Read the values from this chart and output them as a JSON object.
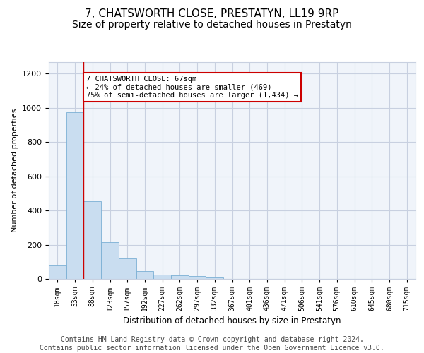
{
  "title": "7, CHATSWORTH CLOSE, PRESTATYN, LL19 9RP",
  "subtitle": "Size of property relative to detached houses in Prestatyn",
  "xlabel": "Distribution of detached houses by size in Prestatyn",
  "ylabel": "Number of detached properties",
  "bar_labels": [
    "18sqm",
    "53sqm",
    "88sqm",
    "123sqm",
    "157sqm",
    "192sqm",
    "227sqm",
    "262sqm",
    "297sqm",
    "332sqm",
    "367sqm",
    "401sqm",
    "436sqm",
    "471sqm",
    "506sqm",
    "541sqm",
    "576sqm",
    "610sqm",
    "645sqm",
    "680sqm",
    "715sqm"
  ],
  "bar_values": [
    80,
    975,
    455,
    215,
    120,
    47,
    25,
    20,
    15,
    10,
    0,
    0,
    0,
    0,
    0,
    0,
    0,
    0,
    0,
    0,
    0
  ],
  "bar_color": "#c9ddf0",
  "bar_edge_color": "#7bafd4",
  "grid_color": "#c8d0e0",
  "annotation_box_text": "7 CHATSWORTH CLOSE: 67sqm\n← 24% of detached houses are smaller (469)\n75% of semi-detached houses are larger (1,434) →",
  "annotation_box_color": "#ffffff",
  "annotation_box_edge_color": "#cc0000",
  "vline_x": 1.5,
  "vline_color": "#cc0000",
  "ylim": [
    0,
    1270
  ],
  "yticks": [
    0,
    200,
    400,
    600,
    800,
    1000,
    1200
  ],
  "footer_text": "Contains HM Land Registry data © Crown copyright and database right 2024.\nContains public sector information licensed under the Open Government Licence v3.0.",
  "title_fontsize": 11,
  "subtitle_fontsize": 10,
  "annot_fontsize": 7.5,
  "tick_fontsize": 7,
  "ylabel_fontsize": 8,
  "xlabel_fontsize": 8.5,
  "footer_fontsize": 7
}
